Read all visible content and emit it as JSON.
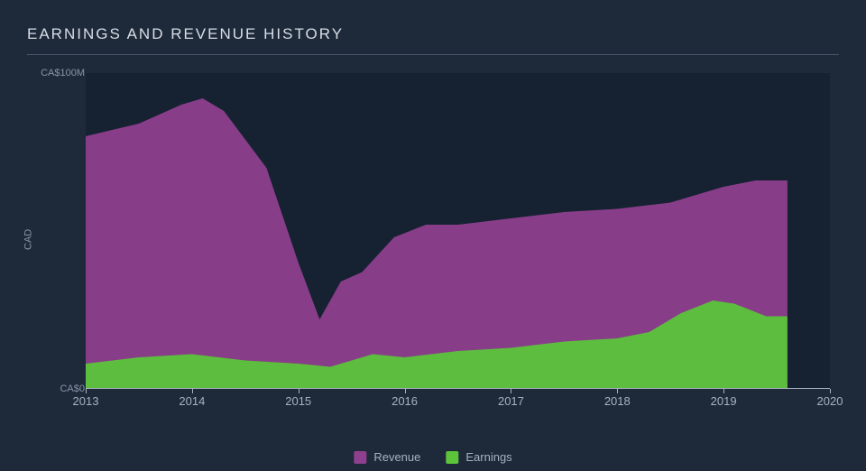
{
  "chart": {
    "type": "area",
    "title": "EARNINGS AND REVENUE HISTORY",
    "background_color": "#1e2a3a",
    "plot_background_color": "#162231",
    "title_color": "#d8dde5",
    "title_fontsize": 17,
    "title_letter_spacing": 2,
    "axis_label_color": "#8a94a6",
    "tick_label_color": "#a8b0bf",
    "divider_color": "#4a5568",
    "axis_line_color": "#a8b0bf",
    "y_axis": {
      "label": "CAD",
      "ticks": [
        {
          "value": 0,
          "label": "CA$0"
        },
        {
          "value": 100,
          "label": "CA$100M"
        }
      ],
      "min": 0,
      "max": 100
    },
    "x_axis": {
      "min": 2013,
      "max": 2020,
      "ticks": [
        {
          "value": 2013,
          "label": "2013"
        },
        {
          "value": 2014,
          "label": "2014"
        },
        {
          "value": 2015,
          "label": "2015"
        },
        {
          "value": 2016,
          "label": "2016"
        },
        {
          "value": 2017,
          "label": "2017"
        },
        {
          "value": 2018,
          "label": "2018"
        },
        {
          "value": 2019,
          "label": "2019"
        },
        {
          "value": 2020,
          "label": "2020"
        }
      ]
    },
    "series": [
      {
        "name": "Revenue",
        "color": "#8e3f8e",
        "fill_opacity": 0.95,
        "data": [
          {
            "x": 2013.0,
            "y": 80
          },
          {
            "x": 2013.5,
            "y": 84
          },
          {
            "x": 2013.9,
            "y": 90
          },
          {
            "x": 2014.1,
            "y": 92
          },
          {
            "x": 2014.3,
            "y": 88
          },
          {
            "x": 2014.7,
            "y": 70
          },
          {
            "x": 2015.0,
            "y": 40
          },
          {
            "x": 2015.2,
            "y": 22
          },
          {
            "x": 2015.4,
            "y": 34
          },
          {
            "x": 2015.6,
            "y": 37
          },
          {
            "x": 2015.9,
            "y": 48
          },
          {
            "x": 2016.2,
            "y": 52
          },
          {
            "x": 2016.5,
            "y": 52
          },
          {
            "x": 2017.0,
            "y": 54
          },
          {
            "x": 2017.5,
            "y": 56
          },
          {
            "x": 2018.0,
            "y": 57
          },
          {
            "x": 2018.5,
            "y": 59
          },
          {
            "x": 2019.0,
            "y": 64
          },
          {
            "x": 2019.3,
            "y": 66
          },
          {
            "x": 2019.6,
            "y": 66
          }
        ]
      },
      {
        "name": "Earnings",
        "color": "#5bc43a",
        "fill_opacity": 0.95,
        "data": [
          {
            "x": 2013.0,
            "y": 8
          },
          {
            "x": 2013.5,
            "y": 10
          },
          {
            "x": 2014.0,
            "y": 11
          },
          {
            "x": 2014.5,
            "y": 9
          },
          {
            "x": 2015.0,
            "y": 8
          },
          {
            "x": 2015.3,
            "y": 7
          },
          {
            "x": 2015.7,
            "y": 11
          },
          {
            "x": 2016.0,
            "y": 10
          },
          {
            "x": 2016.5,
            "y": 12
          },
          {
            "x": 2017.0,
            "y": 13
          },
          {
            "x": 2017.5,
            "y": 15
          },
          {
            "x": 2018.0,
            "y": 16
          },
          {
            "x": 2018.3,
            "y": 18
          },
          {
            "x": 2018.6,
            "y": 24
          },
          {
            "x": 2018.9,
            "y": 28
          },
          {
            "x": 2019.1,
            "y": 27
          },
          {
            "x": 2019.4,
            "y": 23
          },
          {
            "x": 2019.6,
            "y": 23
          }
        ]
      }
    ],
    "legend": {
      "position": "bottom-center",
      "items": [
        {
          "label": "Revenue",
          "color": "#8e3f8e"
        },
        {
          "label": "Earnings",
          "color": "#5bc43a"
        }
      ]
    }
  }
}
